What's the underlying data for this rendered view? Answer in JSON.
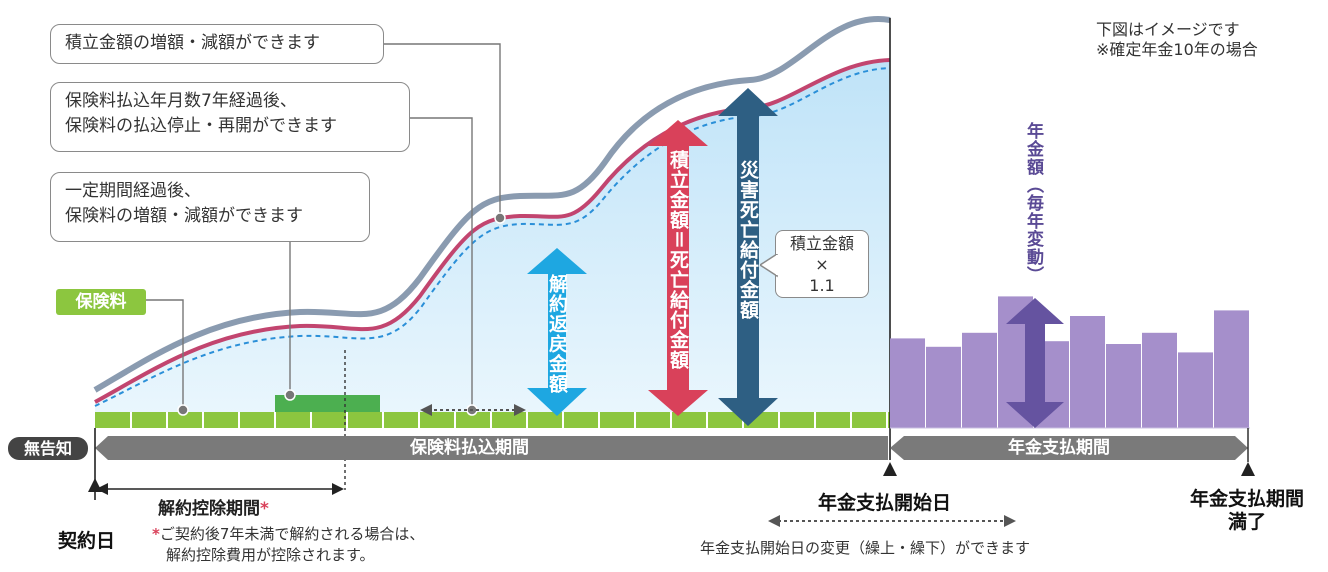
{
  "note": {
    "line1": "下図はイメージです",
    "line2": "※確定年金10年の場合"
  },
  "callouts": {
    "increase_decrease": "積立金額の増額・減額ができます",
    "suspend_line1": "保険料払込年月数7年経過後、",
    "suspend_line2": "保険料の払込停止・再開ができます",
    "premium_line1": "一定期間経過後、",
    "premium_line2": "保険料の増額・減額ができます"
  },
  "premium_tag": "保険料",
  "arrows": {
    "surrender": "解約返戻金額",
    "accumulated": "積立金額＝死亡給付金額",
    "disaster": "災害死亡給付金額",
    "annuity": "年金額（毎年変動）"
  },
  "multiplier": {
    "line1": "積立金額",
    "line2": "×",
    "line3": "1.1"
  },
  "timeline": {
    "no_notice": "無告知",
    "payment_period": "保険料払込期間",
    "annuity_period": "年金支払期間"
  },
  "labels": {
    "surrender_deduction_period": "解約控除期間",
    "asterisk": "*",
    "contract_date": "契約日",
    "footnote_mark": "*",
    "footnote_line1": "ご契約後7年未満で解約される場合は、",
    "footnote_line2": "解約控除費用が控除されます。",
    "annuity_start": "年金支払開始日",
    "annuity_start_change": "年金支払開始日の変更（繰上・繰下）ができます",
    "annuity_end_line1": "年金支払期間",
    "annuity_end_line2": "満了"
  },
  "colors": {
    "premium_green": "#8cc63f",
    "dark_green": "#4caf50",
    "area_blue": "#d6ecfa",
    "curve_pink": "#c2456f",
    "curve_gray": "#8a9bb0",
    "arrow_cyan": "#1ea7e1",
    "arrow_red": "#d9415a",
    "arrow_navy": "#2e5f83",
    "annuity_purple": "#a58fcb",
    "annuity_arrow": "#6553a0",
    "timeline_gray": "#7a7a7a"
  },
  "annuity_bars": [
    0.64,
    0.58,
    0.68,
    0.94,
    0.62,
    0.8,
    0.6,
    0.68,
    0.54,
    0.84
  ]
}
